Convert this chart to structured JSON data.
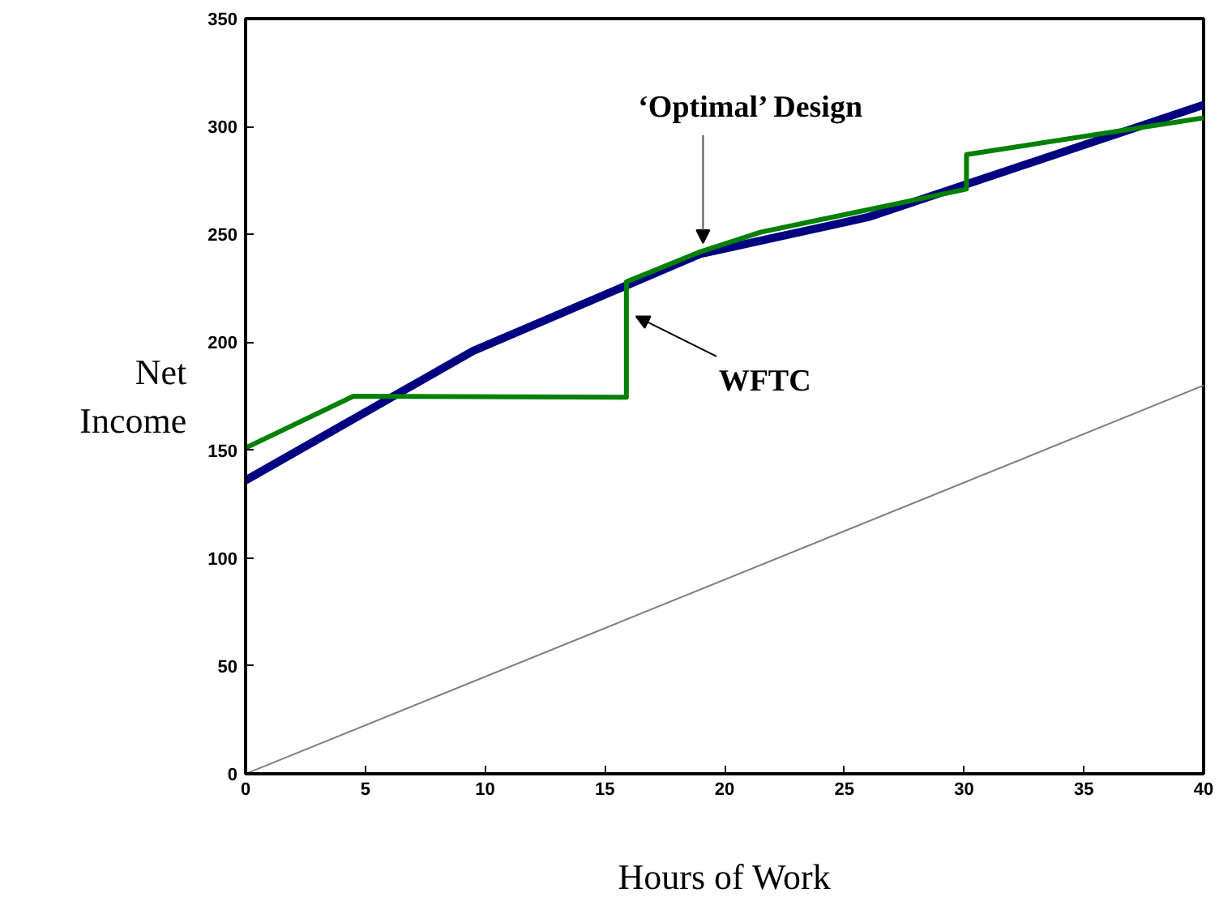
{
  "chart_data": {
    "type": "line",
    "xlabel": "Hours of Work",
    "ylabel": "Net\nIncome",
    "xlim": [
      0,
      40
    ],
    "ylim": [
      0,
      350
    ],
    "xticks": [
      0,
      5,
      10,
      15,
      20,
      25,
      30,
      35,
      40
    ],
    "yticks": [
      0,
      50,
      100,
      150,
      200,
      250,
      300,
      350
    ],
    "grid": false,
    "series": [
      {
        "color": "#808080",
        "x": [
          0,
          40
        ],
        "values": [
          0,
          180
        ]
      },
      {
        "color": "#000080",
        "x": [
          0,
          9.5,
          19,
          26,
          40
        ],
        "values": [
          136,
          196,
          241,
          258,
          310
        ]
      },
      {
        "color": "#008000",
        "x": [
          0,
          4.5,
          15.9,
          15.9,
          19,
          21.5,
          30.1,
          30.1,
          40
        ],
        "values": [
          151,
          175,
          174.5,
          228,
          242,
          251,
          271,
          287,
          304
        ]
      }
    ],
    "annotations": [
      {
        "text": "‘Optimal’ Design",
        "x": 19.1,
        "y": 246
      },
      {
        "text": "WFTC",
        "x": 16.3,
        "y": 212
      }
    ]
  }
}
